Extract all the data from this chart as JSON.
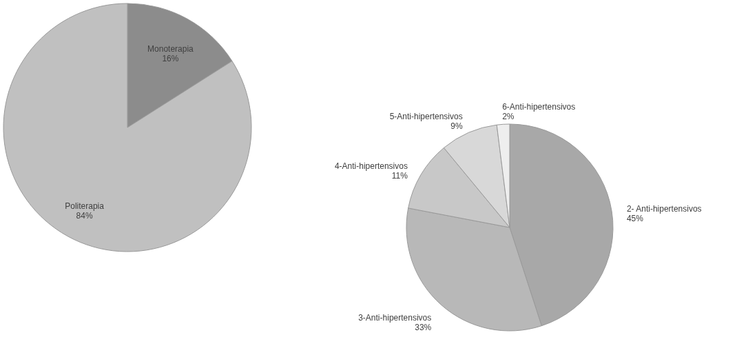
{
  "chart_data": [
    {
      "type": "pie",
      "categories": [
        "Monoterapia",
        "Politerapia"
      ],
      "values": [
        16,
        84
      ],
      "colors": [
        "#8c8c8c",
        "#c0c0c0"
      ],
      "value_labels": [
        "16%",
        "84%"
      ]
    },
    {
      "type": "pie",
      "categories": [
        "2- Anti-hipertensivos",
        "3-Anti-hipertensivos",
        "4-Anti-hipertensivos",
        "5-Anti-hipertensivos",
        "6-Anti-hipertensivos"
      ],
      "values": [
        45,
        33,
        11,
        9,
        2
      ],
      "colors": [
        "#a8a8a8",
        "#b8b8b8",
        "#c8c8c8",
        "#d8d8d8",
        "#eeeeee"
      ],
      "value_labels": [
        "45%",
        "33%",
        "11%",
        "9%",
        "2%"
      ]
    }
  ]
}
